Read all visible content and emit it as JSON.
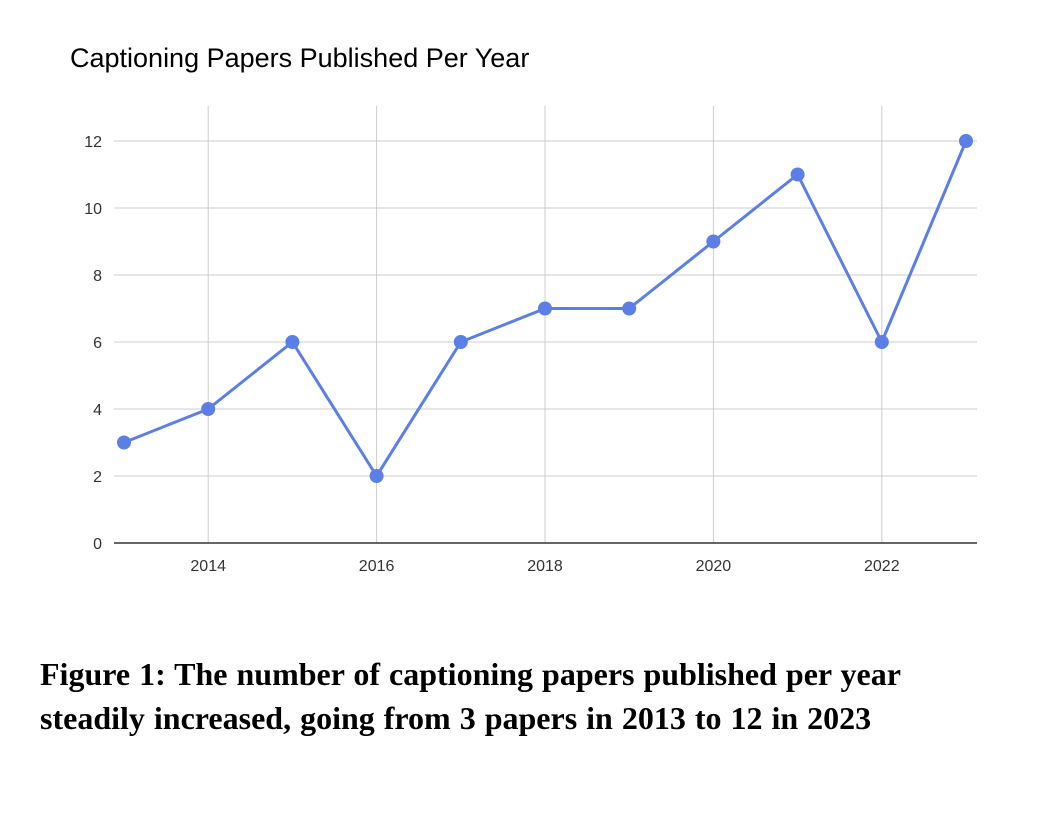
{
  "chart_data": {
    "type": "line",
    "title": "Captioning Papers Published Per Year",
    "xlabel": "",
    "ylabel": "",
    "x": [
      2013,
      2014,
      2015,
      2016,
      2017,
      2018,
      2019,
      2020,
      2021,
      2022,
      2023
    ],
    "series": [
      {
        "values": [
          3,
          4,
          6,
          2,
          6,
          7,
          7,
          9,
          11,
          6,
          12
        ]
      }
    ],
    "xlim": [
      2013,
      2023
    ],
    "ylim": [
      0,
      12
    ],
    "xticks": [
      2014,
      2016,
      2018,
      2020,
      2022
    ],
    "yticks": [
      0,
      2,
      4,
      6,
      8,
      10,
      12
    ],
    "grid": true,
    "line_color": "#5b7fe6",
    "grid_color": "#cccccc",
    "axis_color": "#333333"
  },
  "caption": "Figure 1: The number of captioning papers published per year steadily increased, going from 3 papers in 2013 to 12 in 2023"
}
